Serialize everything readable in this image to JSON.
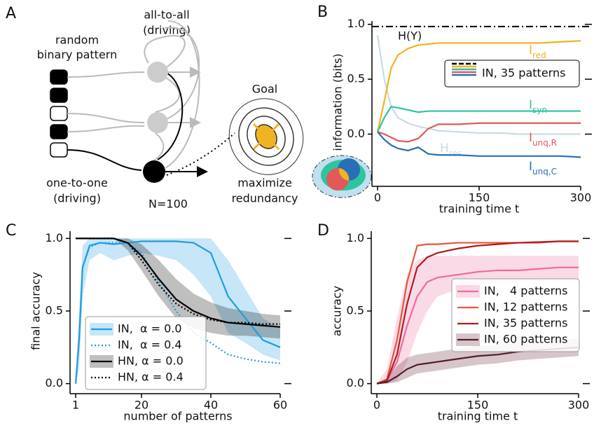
{
  "diagram": {
    "label": "A",
    "input_label": [
      "random",
      "binary pattern"
    ],
    "top_label": [
      "all-to-all",
      "(driving)"
    ],
    "bottom_label": [
      "one-to-one",
      "(driving)"
    ],
    "size_label": "N=100",
    "goal_label": "Goal",
    "goal_text": [
      "maximize",
      "redundancy"
    ]
  },
  "chart_data": [
    {
      "type": "line",
      "label": "B",
      "ylabel": "information (bits)",
      "xlabel": "training time t",
      "xlim": [
        0,
        300
      ],
      "ylim": [
        -0.45,
        1.03
      ],
      "xticks": [
        0,
        150,
        300
      ],
      "yticks": [
        {
          "value": 0,
          "label": "0.0"
        },
        0.5,
        {
          "value": 1,
          "label": "1.0"
        }
      ],
      "hline": {
        "name": "H(Y)",
        "value": 0.98
      },
      "legend": "IN, 35 patterns",
      "x": [
        0,
        10,
        20,
        30,
        45,
        60,
        75,
        90,
        120,
        150,
        180,
        210,
        240,
        270,
        300
      ],
      "series": [
        {
          "name": "H",
          "subscript": "res",
          "color": "#c9dbe4",
          "values": [
            0.9,
            0.5,
            0.25,
            0.15,
            0.1,
            0.07,
            0.05,
            0.03,
            0.02,
            0.01,
            0.01,
            0,
            0,
            0,
            0
          ]
        },
        {
          "name": "I",
          "subscript": "red",
          "color": "#f0b323",
          "values": [
            0.02,
            0.3,
            0.6,
            0.72,
            0.78,
            0.81,
            0.82,
            0.83,
            0.83,
            0.83,
            0.83,
            0.83,
            0.83,
            0.84,
            0.85
          ]
        },
        {
          "name": "I",
          "subscript": "syn",
          "color": "#2ec4a0",
          "values": [
            0.02,
            0.15,
            0.25,
            0.24,
            0.22,
            0.2,
            0.21,
            0.21,
            0.21,
            0.21,
            0.21,
            0.21,
            0.21,
            0.21,
            0.21
          ]
        },
        {
          "name": "I",
          "subscript": "unq,R",
          "color": "#e05a5a",
          "values": [
            0.02,
            0,
            -0.03,
            -0.06,
            -0.07,
            -0.04,
            0.05,
            0.09,
            0.09,
            0.1,
            0.1,
            0.1,
            0.1,
            0.1,
            0.1
          ]
        },
        {
          "name": "I",
          "subscript": "unq,C",
          "color": "#2a6fb5",
          "values": [
            0.02,
            -0.05,
            -0.1,
            -0.13,
            -0.15,
            -0.12,
            -0.18,
            -0.19,
            -0.19,
            -0.2,
            -0.2,
            -0.2,
            -0.2,
            -0.2,
            -0.21
          ]
        }
      ]
    },
    {
      "type": "line",
      "label": "C",
      "ylabel": "final accuracy",
      "xlabel": "number of patterns",
      "xlim": [
        1,
        60
      ],
      "ylim": [
        -0.05,
        1.05
      ],
      "xticks": [
        1,
        20,
        40,
        60
      ],
      "yticks": [
        {
          "value": 0,
          "label": "0.0"
        },
        0.5,
        {
          "value": 1,
          "label": "1.0"
        }
      ],
      "x": [
        1,
        2,
        3,
        5,
        8,
        12,
        16,
        20,
        25,
        30,
        35,
        40,
        45,
        50,
        55,
        60
      ],
      "series": [
        {
          "name": "IN,  α = 0.0",
          "color": "#1f9de0",
          "style": "solid",
          "values": [
            0,
            0.3,
            0.8,
            0.95,
            0.97,
            0.96,
            0.97,
            0.98,
            0.98,
            0.98,
            0.97,
            0.9,
            0.6,
            0.45,
            0.3,
            0.25
          ],
          "lower": [
            0,
            0.1,
            0.6,
            0.85,
            0.9,
            0.85,
            0.88,
            0.9,
            0.88,
            0.85,
            0.75,
            0.6,
            0.35,
            0.28,
            0.2,
            0.16
          ],
          "upper": [
            0.05,
            0.5,
            0.95,
            1,
            1,
            1,
            1,
            1,
            1,
            1,
            1,
            1,
            0.85,
            0.65,
            0.45,
            0.38
          ]
        },
        {
          "name": "IN,  α = 0.4",
          "color": "#1f9de0",
          "style": "dotted",
          "values": [
            0,
            0.3,
            0.8,
            0.94,
            0.97,
            0.97,
            0.97,
            0.9,
            0.7,
            0.5,
            0.35,
            0.28,
            0.2,
            0.17,
            0.15,
            0.14
          ]
        },
        {
          "name": "HN, α = 0.0",
          "color": "#000000",
          "style": "solid",
          "values": [
            1,
            1,
            1,
            1,
            1,
            1,
            0.97,
            0.88,
            0.72,
            0.58,
            0.5,
            0.45,
            0.42,
            0.41,
            0.4,
            0.39
          ],
          "lower": [
            1,
            1,
            1,
            1,
            1,
            1,
            0.92,
            0.78,
            0.6,
            0.45,
            0.38,
            0.35,
            0.33,
            0.33,
            0.32,
            0.31
          ],
          "upper": [
            1,
            1,
            1,
            1,
            1,
            1,
            1,
            0.96,
            0.85,
            0.72,
            0.62,
            0.56,
            0.52,
            0.5,
            0.48,
            0.47
          ]
        },
        {
          "name": "HN, α = 0.4",
          "color": "#000000",
          "style": "dotted",
          "values": [
            1,
            1,
            1,
            1,
            1,
            1,
            0.97,
            0.85,
            0.68,
            0.55,
            0.48,
            0.44,
            0.42,
            0.42,
            0.41,
            0.41
          ]
        }
      ]
    },
    {
      "type": "line",
      "label": "D",
      "ylabel": "accuracy",
      "xlabel": "training time t",
      "xlim": [
        0,
        300
      ],
      "ylim": [
        -0.05,
        1.05
      ],
      "xticks": [
        0,
        150,
        300
      ],
      "yticks": [
        {
          "value": 0,
          "label": "0.0"
        },
        0.5,
        {
          "value": 1,
          "label": "1.0"
        }
      ],
      "x": [
        0,
        15,
        30,
        45,
        60,
        75,
        90,
        120,
        150,
        180,
        210,
        240,
        270,
        300
      ],
      "series": [
        {
          "name": "IN,   4 patterns",
          "color": "#f06aa0",
          "values": [
            0,
            0.02,
            0.15,
            0.4,
            0.6,
            0.7,
            0.73,
            0.75,
            0.77,
            0.78,
            0.78,
            0.79,
            0.8,
            0.8
          ],
          "lower": [
            0,
            0,
            0.02,
            0.15,
            0.35,
            0.5,
            0.6,
            0.65,
            0.68,
            0.7,
            0.7,
            0.72,
            0.72,
            0.72
          ],
          "upper": [
            0,
            0.1,
            0.45,
            0.75,
            0.85,
            0.88,
            0.88,
            0.88,
            0.88,
            0.88,
            0.88,
            0.88,
            0.88,
            0.88
          ]
        },
        {
          "name": "IN, 12 patterns",
          "color": "#e8553a",
          "values": [
            0,
            0.03,
            0.3,
            0.7,
            0.95,
            0.96,
            0.96,
            0.97,
            0.97,
            0.97,
            0.97,
            0.97,
            0.98,
            0.98
          ]
        },
        {
          "name": "IN, 35 patterns",
          "color": "#b01c1c",
          "values": [
            0,
            0.02,
            0.2,
            0.55,
            0.8,
            0.87,
            0.9,
            0.93,
            0.95,
            0.96,
            0.97,
            0.975,
            0.98,
            0.98
          ]
        },
        {
          "name": "IN, 60 patterns",
          "color": "#5a1a2a",
          "values": [
            0,
            0.01,
            0.05,
            0.1,
            0.13,
            0.14,
            0.15,
            0.17,
            0.19,
            0.2,
            0.22,
            0.23,
            0.24,
            0.25
          ],
          "lower": [
            0,
            0,
            0.01,
            0.04,
            0.07,
            0.08,
            0.09,
            0.11,
            0.13,
            0.14,
            0.16,
            0.17,
            0.18,
            0.19
          ],
          "upper": [
            0,
            0.03,
            0.12,
            0.18,
            0.2,
            0.21,
            0.22,
            0.24,
            0.26,
            0.27,
            0.28,
            0.29,
            0.3,
            0.31
          ]
        }
      ]
    }
  ]
}
